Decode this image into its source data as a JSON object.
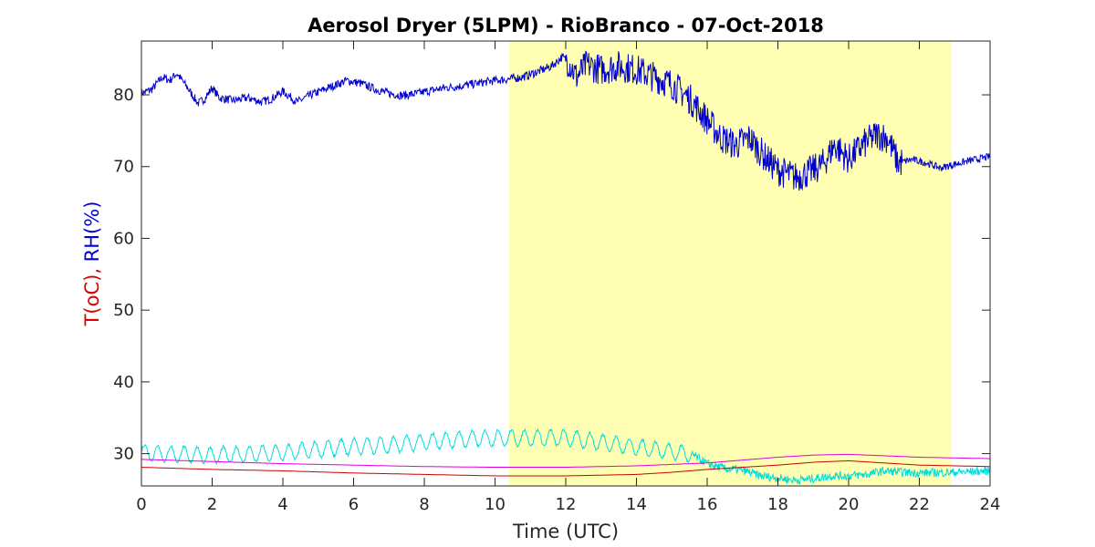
{
  "chart_data": {
    "type": "line",
    "title": "Aerosol Dryer (5LPM) - RioBranco - 07-Oct-2018",
    "xlabel": "Time (UTC)",
    "ylabel_parts": [
      {
        "text": "T(oC),",
        "color": "#dd0000"
      },
      {
        "text": "RH(%)",
        "color": "#0000dd"
      }
    ],
    "xlim": [
      0,
      24
    ],
    "ylim": [
      25.5,
      87.5
    ],
    "xticks": [
      0,
      2,
      4,
      6,
      8,
      10,
      12,
      14,
      16,
      18,
      20,
      22,
      24
    ],
    "yticks": [
      30,
      40,
      50,
      60,
      70,
      80
    ],
    "highlight": {
      "x_start": 10.4,
      "x_end": 22.9,
      "color": "#ffffb4"
    },
    "grid": false,
    "series": [
      {
        "color": "#0000cc",
        "noise": 0.6,
        "points": [
          [
            0,
            80.2
          ],
          [
            0.3,
            80.8
          ],
          [
            0.6,
            82.5
          ],
          [
            0.8,
            82.0
          ],
          [
            1.0,
            83.0
          ],
          [
            1.3,
            81.0
          ],
          [
            1.6,
            78.8
          ],
          [
            1.8,
            79.5
          ],
          [
            2.0,
            81.0
          ],
          [
            2.2,
            79.6
          ],
          [
            2.6,
            79.2
          ],
          [
            3.0,
            79.6
          ],
          [
            3.4,
            79.0
          ],
          [
            3.7,
            79.5
          ],
          [
            4.0,
            80.5
          ],
          [
            4.4,
            79.0
          ],
          [
            4.8,
            80.0
          ],
          [
            5.3,
            81.0
          ],
          [
            5.8,
            82.0
          ],
          [
            6.2,
            81.6
          ],
          [
            6.6,
            80.8
          ],
          [
            7.0,
            80.2
          ],
          [
            7.4,
            79.9
          ],
          [
            7.8,
            80.2
          ],
          [
            8.2,
            80.6
          ],
          [
            8.6,
            81.0
          ],
          [
            9.0,
            81.2
          ],
          [
            9.5,
            81.6
          ],
          [
            10.0,
            82.0
          ],
          [
            10.4,
            82.2
          ],
          [
            10.8,
            82.5
          ],
          [
            11.2,
            83.2
          ],
          [
            11.6,
            84.0
          ],
          [
            11.9,
            85.3
          ],
          [
            12.1,
            84.5
          ],
          [
            12.3,
            82.5
          ],
          [
            12.6,
            84.2
          ],
          [
            13.0,
            83.5
          ],
          [
            13.5,
            84.0
          ],
          [
            14.0,
            83.5
          ],
          [
            14.5,
            82.5
          ],
          [
            15.0,
            81.5
          ],
          [
            15.5,
            79.5
          ],
          [
            16.0,
            76.5
          ],
          [
            16.4,
            74.0
          ],
          [
            16.8,
            73.0
          ],
          [
            17.2,
            74.0
          ],
          [
            17.6,
            71.5
          ],
          [
            18.0,
            69.5
          ],
          [
            18.5,
            68.5
          ],
          [
            19.0,
            69.5
          ],
          [
            19.3,
            70.5
          ],
          [
            19.6,
            73.0
          ],
          [
            20.0,
            71.0
          ],
          [
            20.4,
            73.0
          ],
          [
            20.8,
            74.5
          ],
          [
            21.1,
            74.0
          ],
          [
            21.4,
            70.5
          ],
          [
            21.8,
            71.0
          ],
          [
            22.2,
            70.5
          ],
          [
            22.6,
            69.8
          ],
          [
            22.9,
            70.2
          ],
          [
            23.4,
            70.8
          ],
          [
            24.0,
            71.4
          ]
        ]
      },
      {
        "color": "#00dddd",
        "noise": 0.2,
        "points": [
          [
            0,
            30.2
          ],
          [
            1.0,
            29.9
          ],
          [
            2.0,
            29.8
          ],
          [
            3.0,
            29.9
          ],
          [
            4.0,
            30.1
          ],
          [
            5.0,
            30.6
          ],
          [
            6.0,
            31.0
          ],
          [
            7.0,
            31.2
          ],
          [
            8.0,
            31.6
          ],
          [
            9.0,
            32.0
          ],
          [
            10.0,
            32.2
          ],
          [
            11.0,
            32.2
          ],
          [
            12.0,
            32.2
          ],
          [
            13.0,
            31.6
          ],
          [
            14.0,
            30.9
          ],
          [
            15.0,
            30.3
          ],
          [
            15.6,
            29.8
          ],
          [
            16.0,
            28.6
          ],
          [
            16.5,
            27.9
          ],
          [
            17.0,
            27.7
          ],
          [
            17.5,
            26.9
          ],
          [
            18.0,
            26.6
          ],
          [
            18.5,
            26.3
          ],
          [
            19.0,
            26.5
          ],
          [
            19.5,
            26.9
          ],
          [
            20.0,
            26.9
          ],
          [
            20.5,
            27.1
          ],
          [
            21.0,
            27.6
          ],
          [
            21.5,
            27.4
          ],
          [
            22.0,
            27.3
          ],
          [
            23.0,
            27.4
          ],
          [
            24.0,
            27.6
          ]
        ]
      },
      {
        "color": "#dd00dd",
        "noise": 0.0,
        "points": [
          [
            0,
            29.2
          ],
          [
            2,
            28.9
          ],
          [
            4,
            28.6
          ],
          [
            6,
            28.4
          ],
          [
            8,
            28.2
          ],
          [
            10,
            28.1
          ],
          [
            12,
            28.1
          ],
          [
            14,
            28.3
          ],
          [
            16,
            28.7
          ],
          [
            17,
            29.1
          ],
          [
            18,
            29.5
          ],
          [
            19,
            29.8
          ],
          [
            20,
            29.9
          ],
          [
            21,
            29.7
          ],
          [
            22,
            29.5
          ],
          [
            23,
            29.4
          ],
          [
            24,
            29.3
          ]
        ]
      },
      {
        "color": "#cc0000",
        "noise": 0.0,
        "points": [
          [
            0,
            28.1
          ],
          [
            2,
            27.8
          ],
          [
            4,
            27.6
          ],
          [
            6,
            27.3
          ],
          [
            8,
            27.1
          ],
          [
            10,
            26.9
          ],
          [
            12,
            26.9
          ],
          [
            14,
            27.1
          ],
          [
            15,
            27.4
          ],
          [
            16,
            27.8
          ],
          [
            17,
            28.1
          ],
          [
            18,
            28.4
          ],
          [
            19,
            28.8
          ],
          [
            20,
            29.0
          ],
          [
            21,
            28.7
          ],
          [
            22,
            28.4
          ],
          [
            23,
            28.3
          ],
          [
            24,
            28.2
          ]
        ]
      }
    ]
  }
}
